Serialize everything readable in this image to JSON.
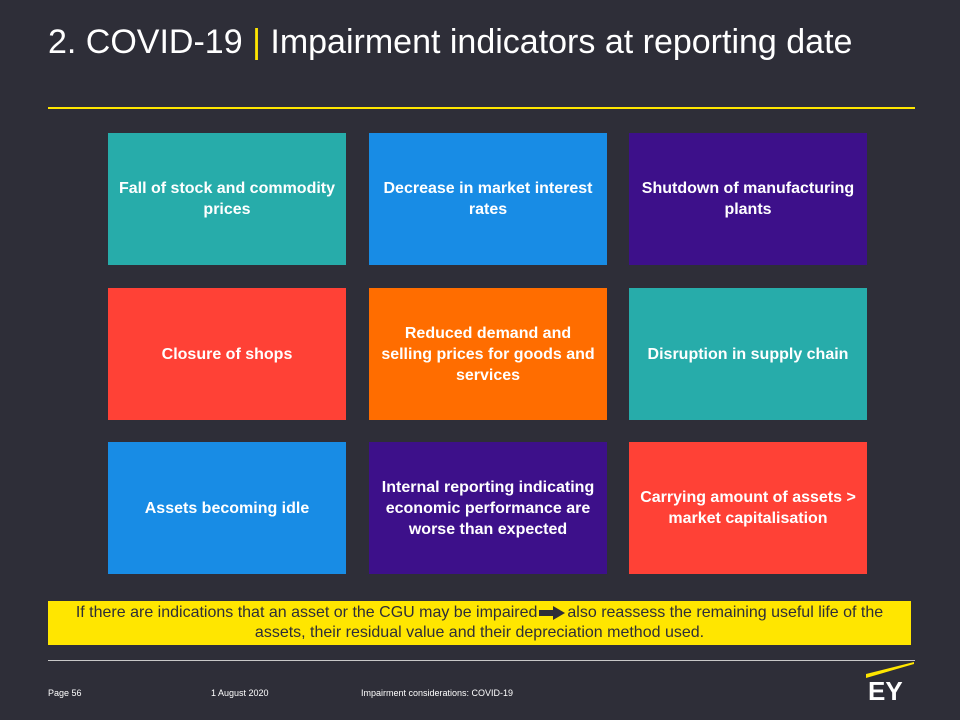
{
  "slide": {
    "title_prefix": "2. COVID-19",
    "title_separator": "|",
    "title_main": "Impairment indicators at reporting date"
  },
  "tiles": [
    {
      "label": "Fall of stock and commodity prices",
      "color": "#27acaa"
    },
    {
      "label": "Decrease in market interest rates",
      "color": "#188ce5"
    },
    {
      "label": "Shutdown of manufacturing plants",
      "color": "#3d108a"
    },
    {
      "label": "Closure of shops",
      "color": "#ff4136"
    },
    {
      "label": "Reduced demand and selling prices for goods and services",
      "color": "#ff6d00"
    },
    {
      "label": "Disruption in supply chain",
      "color": "#27acaa"
    },
    {
      "label": "Assets becoming idle",
      "color": "#188ce5"
    },
    {
      "label": "Internal reporting indicating economic performance are worse than expected",
      "color": "#3d108a"
    },
    {
      "label": "Carrying amount of assets > market capitalisation",
      "color": "#ff4136"
    }
  ],
  "note": {
    "text_before": "If there are indications that an asset or the CGU may be impaired",
    "text_after": "also reassess the remaining useful life of the assets, their residual value and their depreciation method used.",
    "arrow_icon": "right-arrow-icon"
  },
  "footer": {
    "page": "Page 56",
    "date": "1 August 2020",
    "document": "Impairment considerations: COVID-19"
  },
  "brand": {
    "logo_text": "EY",
    "accent": "#ffe600",
    "background": "#2e2e38"
  }
}
